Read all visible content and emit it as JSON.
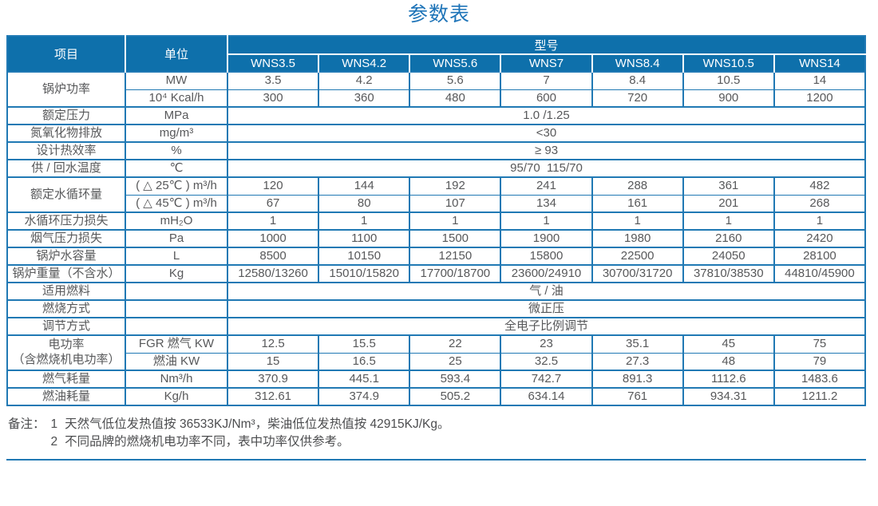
{
  "title": "参数表",
  "colors": {
    "header_bg": "#0e70ab",
    "grid": "#2079b4",
    "title_text": "#1e74b8",
    "body_text": "#57585a",
    "header_text": "#ffffff"
  },
  "table": {
    "header": {
      "item": "项目",
      "unit": "单位",
      "model_group": "型号",
      "models": [
        "WNS3.5",
        "WNS4.2",
        "WNS5.6",
        "WNS7",
        "WNS8.4",
        "WNS10.5",
        "WNS14"
      ]
    },
    "rows": [
      {
        "item": "锅炉功率",
        "rowspan": 2,
        "unit": "MW",
        "values": [
          "3.5",
          "4.2",
          "5.6",
          "7",
          "8.4",
          "10.5",
          "14"
        ]
      },
      {
        "sub": true,
        "unit": "10⁴ Kcal/h",
        "values": [
          "300",
          "360",
          "480",
          "600",
          "720",
          "900",
          "1200"
        ]
      },
      {
        "item": "额定压力",
        "unit": "MPa",
        "merged": "1.0 /1.25"
      },
      {
        "item": "氮氧化物排放",
        "unit": "mg/m³",
        "merged": "<30"
      },
      {
        "item": "设计热效率",
        "unit": "%",
        "merged": "≥ 93"
      },
      {
        "item": "供 / 回水温度",
        "unit": "℃",
        "merged": "95/70  115/70"
      },
      {
        "item": "额定水循环量",
        "rowspan": 2,
        "unit": "( △ 25℃ ) m³/h",
        "values": [
          "120",
          "144",
          "192",
          "241",
          "288",
          "361",
          "482"
        ]
      },
      {
        "sub": true,
        "unit": "( △ 45℃ ) m³/h",
        "values": [
          "67",
          "80",
          "107",
          "134",
          "161",
          "201",
          "268"
        ]
      },
      {
        "item": "水循环压力损失",
        "unit": "mH₂O",
        "values": [
          "1",
          "1",
          "1",
          "1",
          "1",
          "1",
          "1"
        ]
      },
      {
        "item": "烟气压力损失",
        "unit": "Pa",
        "values": [
          "1000",
          "1100",
          "1500",
          "1900",
          "1980",
          "2160",
          "2420"
        ]
      },
      {
        "item": "锅炉水容量",
        "unit": "L",
        "values": [
          "8500",
          "10150",
          "12150",
          "15800",
          "22500",
          "24050",
          "28100"
        ]
      },
      {
        "item": "锅炉重量（不含水）",
        "unit": "Kg",
        "values": [
          "12580/13260",
          "15010/15820",
          "17700/18700",
          "23600/24910",
          "30700/31720",
          "37810/38530",
          "44810/45900"
        ]
      },
      {
        "item": "适用燃料",
        "unit": "",
        "merged": "气 / 油"
      },
      {
        "item": "燃烧方式",
        "unit": "",
        "merged": "微正压"
      },
      {
        "item": "调节方式",
        "unit": "",
        "merged": "全电子比例调节"
      },
      {
        "item_lines": [
          "电功率",
          "（含燃烧机电功率）"
        ],
        "rowspan": 2,
        "unit": "FGR 燃气 KW",
        "values": [
          "12.5",
          "15.5",
          "22",
          "23",
          "35.1",
          "45",
          "75"
        ]
      },
      {
        "sub": true,
        "unit": "燃油 KW",
        "values": [
          "15",
          "16.5",
          "25",
          "32.5",
          "27.3",
          "48",
          "79"
        ]
      },
      {
        "item": "燃气耗量",
        "unit": "Nm³/h",
        "values": [
          "370.9",
          "445.1",
          "593.4",
          "742.7",
          "891.3",
          "1112.6",
          "1483.6"
        ]
      },
      {
        "item": "燃油耗量",
        "unit": "Kg/h",
        "values": [
          "312.61",
          "374.9",
          "505.2",
          "634.14",
          "761",
          "934.31",
          "1211.2"
        ]
      }
    ]
  },
  "notes": {
    "label": "备注：",
    "items": [
      {
        "num": "1",
        "text": "天然气低位发热值按 36533KJ/Nm³，柴油低位发热值按 42915KJ/Kg。"
      },
      {
        "num": "2",
        "text": "不同品牌的燃烧机电功率不同，表中功率仅供参考。"
      }
    ]
  }
}
